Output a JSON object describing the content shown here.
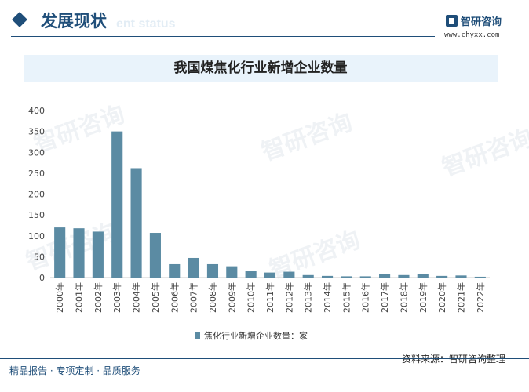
{
  "header": {
    "section_title": "发展现状",
    "section_subtitle": "ent status",
    "brand_name": "智研咨询",
    "brand_url": "www.chyxx.com",
    "accent_color": "#1f4e79"
  },
  "watermark_text": "智研咨询",
  "legend": {
    "label": "焦化行业新增企业数量：家",
    "color": "#5b8ba3"
  },
  "source": "资料来源：智研咨询整理",
  "footer": {
    "text": "精品报告 · 专项定制 · 品质服务"
  },
  "chart_data": {
    "type": "bar",
    "title": "我国煤焦化行业新增企业数量",
    "categories": [
      "2000年",
      "2001年",
      "2002年",
      "2003年",
      "2004年",
      "2005年",
      "2006年",
      "2007年",
      "2008年",
      "2009年",
      "2010年",
      "2011年",
      "2012年",
      "2013年",
      "2014年",
      "2015年",
      "2016年",
      "2017年",
      "2018年",
      "2019年",
      "2020年",
      "2021年",
      "2022年"
    ],
    "series": [
      {
        "name": "焦化行业新增企业数量：家",
        "values": [
          120,
          118,
          110,
          350,
          262,
          107,
          32,
          47,
          32,
          27,
          15,
          12,
          14,
          6,
          4,
          3,
          3,
          8,
          6,
          8,
          4,
          5,
          2
        ]
      }
    ],
    "ylim": [
      0,
      400
    ],
    "yticks": [
      0,
      50,
      100,
      150,
      200,
      250,
      300,
      350,
      400
    ],
    "grid": false,
    "legend_position": "bottom"
  }
}
